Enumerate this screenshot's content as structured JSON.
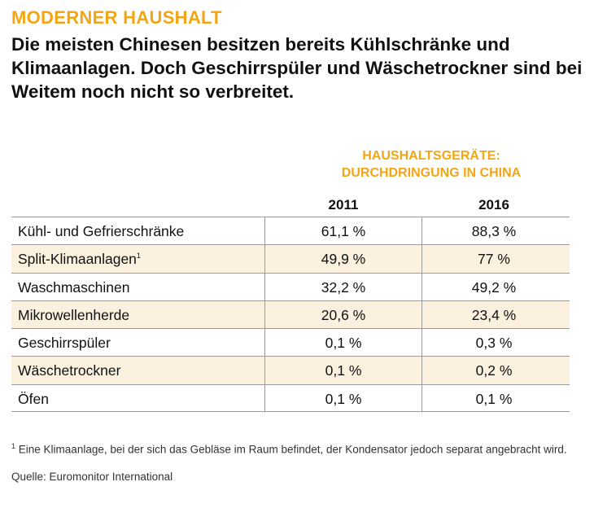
{
  "kicker": "MODERNER HAUSHALT",
  "headline": "Die meisten Chinesen besitzen bereits Kühlschränke und Klimaanlagen. Doch Geschirrspüler und Wäsche­trockner sind bei Weitem noch nicht so verbreitet.",
  "table": {
    "heading_line1": "HAUSHALTSGERÄTE:",
    "heading_line2": "DURCHDRINGUNG IN CHINA",
    "columns": [
      "2011",
      "2016"
    ],
    "rows": [
      {
        "label": "Kühl- und Gefrierschränke",
        "sup": "",
        "v2011": "61,1 %",
        "v2016": "88,3 %"
      },
      {
        "label": "Split-Klimaanlagen",
        "sup": "1",
        "v2011": "49,9 %",
        "v2016": "77 %"
      },
      {
        "label": "Waschmaschinen",
        "sup": "",
        "v2011": "32,2 %",
        "v2016": "49,2 %"
      },
      {
        "label": "Mikrowellenherde",
        "sup": "",
        "v2011": "20,6 %",
        "v2016": "23,4 %"
      },
      {
        "label": "Geschirrspüler",
        "sup": "",
        "v2011": "0,1 %",
        "v2016": "0,3 %"
      },
      {
        "label": "Wäschetrockner",
        "sup": "",
        "v2011": "0,1 %",
        "v2016": "0,2 %"
      },
      {
        "label": "Öfen",
        "sup": "",
        "v2011": "0,1 %",
        "v2016": "0,1 %"
      }
    ]
  },
  "footnote": {
    "marker": "1",
    "text": "Eine Klimaanlage, bei der sich das Gebläse im Raum befindet, der Kondensator jedoch separat angebracht wird."
  },
  "source": "Quelle: Euromonitor International",
  "colors": {
    "accent": "#f2a515",
    "row_shade": "#fcf1de",
    "rule": "#9a9a9a"
  }
}
